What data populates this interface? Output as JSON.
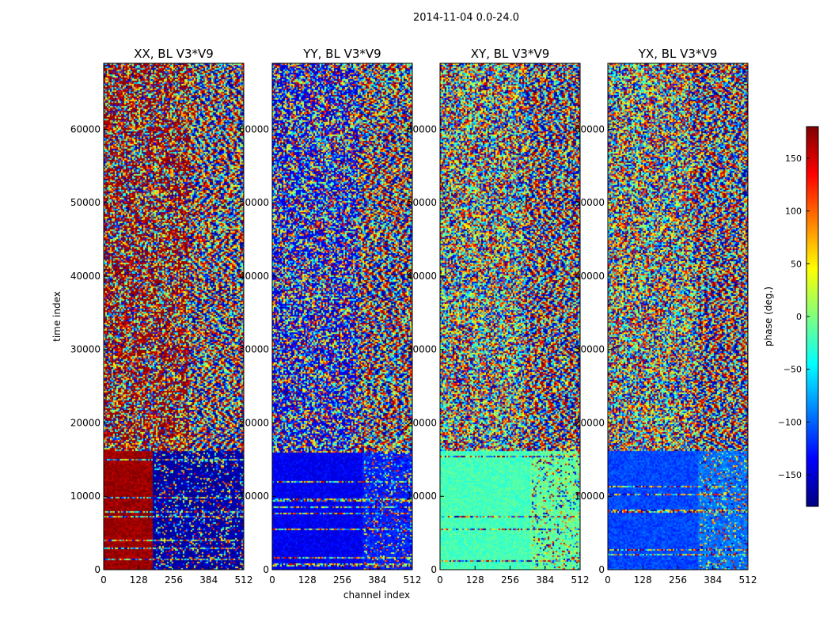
{
  "suptitle": "2014-11-04 0.0-24.0",
  "chart_data": {
    "type": "heatmap",
    "title": "2014-11-04 0.0-24.0",
    "xlabel": "channel index",
    "ylabel": "time index",
    "xlim": [
      0,
      512
    ],
    "ylim": [
      0,
      69000
    ],
    "xticks": [
      0,
      128,
      256,
      384,
      512
    ],
    "yticks": [
      0,
      10000,
      20000,
      30000,
      40000,
      50000,
      60000
    ],
    "panels": [
      {
        "title": "XX, BL V3*V9",
        "pol": "XX",
        "low_block_phase": [
          170,
          -165
        ],
        "channel_split": 180
      },
      {
        "title": "YY, BL V3*V9",
        "pol": "YY",
        "low_block_phase": [
          -140,
          -125
        ],
        "channel_split": 330
      },
      {
        "title": "XY, BL V3*V9",
        "pol": "XY",
        "low_block_phase": [
          -20,
          -10
        ],
        "channel_split": 330
      },
      {
        "title": "YX, BL V3*V9",
        "pol": "YX",
        "low_block_phase": [
          -110,
          -95
        ],
        "channel_split": 330
      }
    ],
    "colorbar": {
      "label": "phase (deg.)",
      "range": [
        -180,
        180
      ],
      "ticks": [
        -150,
        -100,
        -50,
        0,
        50,
        100,
        150
      ],
      "colormap": "jet"
    }
  },
  "colors": {
    "jet": [
      "#00007f",
      "#0000ff",
      "#007fff",
      "#00ffff",
      "#7fff7f",
      "#ffff00",
      "#ff7f00",
      "#ff0000",
      "#7f0000"
    ]
  }
}
